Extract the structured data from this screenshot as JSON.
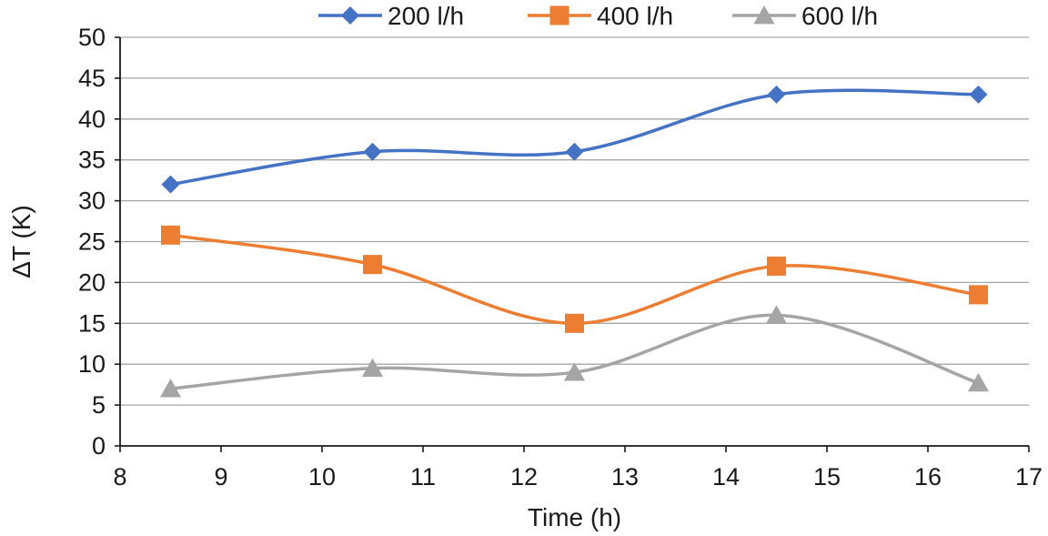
{
  "chart_data": {
    "type": "line",
    "title": "",
    "xlabel": "Time (h)",
    "ylabel": "ΔT (K)",
    "xlim": [
      8,
      17
    ],
    "ylim": [
      0,
      50
    ],
    "x_ticks": [
      8,
      9,
      10,
      11,
      12,
      13,
      14,
      15,
      16,
      17
    ],
    "y_ticks": [
      0,
      5,
      10,
      15,
      20,
      25,
      30,
      35,
      40,
      45,
      50
    ],
    "grid": "horizontal",
    "legend_position": "top",
    "smooth": true,
    "series": [
      {
        "name": "200 l/h",
        "color": "#4472C4",
        "marker": "diamond",
        "x": [
          8.5,
          10.5,
          12.5,
          14.5,
          16.5
        ],
        "y": [
          32,
          36,
          36,
          43,
          43
        ]
      },
      {
        "name": "400 l/h",
        "color": "#ED7D31",
        "marker": "square",
        "x": [
          8.5,
          10.5,
          12.5,
          14.5,
          16.5
        ],
        "y": [
          25.8,
          22.2,
          15,
          22,
          18.5
        ]
      },
      {
        "name": "600 l/h",
        "color": "#A5A5A5",
        "marker": "triangle",
        "x": [
          8.5,
          10.5,
          12.5,
          14.5,
          16.5
        ],
        "y": [
          7,
          9.5,
          9,
          16,
          7.7
        ]
      }
    ]
  }
}
